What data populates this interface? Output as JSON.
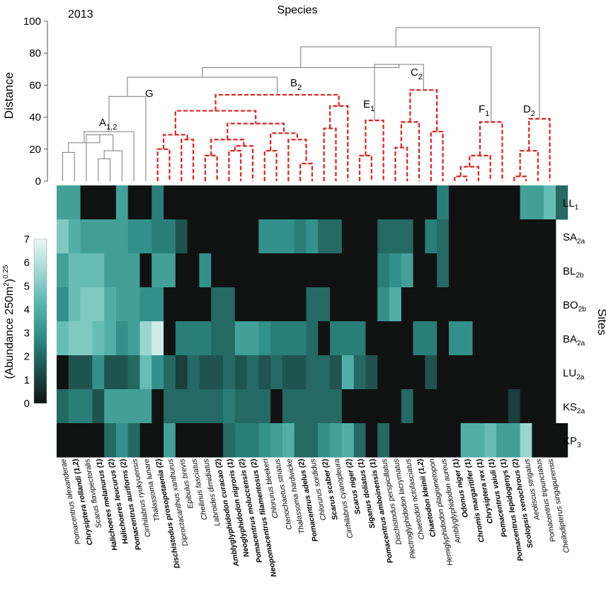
{
  "chart_data": {
    "type": "heatmap",
    "year_label": "2013",
    "x_title": "Species",
    "dendrogram_axis": {
      "label": "Distance",
      "ticks": [
        0,
        20,
        40,
        60,
        80,
        100
      ],
      "range": [
        0,
        100
      ]
    },
    "colorbar": {
      "label_main": "(Abundance 250m",
      "label_sup1": "2",
      "label_close": ")",
      "label_sup2": "0.25",
      "ticks": [
        0,
        1,
        2,
        3,
        4,
        5,
        6,
        7
      ],
      "range": [
        0,
        7
      ],
      "colors": [
        "#101212",
        "#1e4f4b",
        "#2c8b84",
        "#57b5ad",
        "#9fd8d2",
        "#e8f6f5"
      ]
    },
    "sites_title": "Sites",
    "sites": [
      {
        "main": "LL",
        "sub": "1"
      },
      {
        "main": "SA",
        "sub": "2a"
      },
      {
        "main": "BL",
        "sub": "2b"
      },
      {
        "main": "BO",
        "sub": "2b"
      },
      {
        "main": "BA",
        "sub": "2a"
      },
      {
        "main": "LU",
        "sub": "2a"
      },
      {
        "main": "KS",
        "sub": "2a"
      },
      {
        "main": "KP",
        "sub": "3"
      }
    ],
    "species": [
      {
        "name": "Pomacentrus alexanderae",
        "bold": false
      },
      {
        "name": "Chrysiptera rollandi (1,2)",
        "bold": true
      },
      {
        "name": "Scarus flavipectoralis",
        "bold": false
      },
      {
        "name": "Halichoeres melanurus (1)",
        "bold": true
      },
      {
        "name": "Halichoeres leucurus (2)",
        "bold": true
      },
      {
        "name": "Pomacentrus auriforns (2)",
        "bold": true
      },
      {
        "name": "Cirrhilabrus ryukyuensis",
        "bold": false
      },
      {
        "name": "Thalassoma lunare",
        "bold": false
      },
      {
        "name": "Dischistodus prosopotaenia (2)",
        "bold": true
      },
      {
        "name": "Diproctacanthus xanthurus",
        "bold": false
      },
      {
        "name": "Epibulus brevis",
        "bold": false
      },
      {
        "name": "Cheilinus fasciatus",
        "bold": false
      },
      {
        "name": "Labroides dimidiatus",
        "bold": false
      },
      {
        "name": "Amblyglyphidodon curacao (2)",
        "bold": true
      },
      {
        "name": "Neoglyphidodon nigroris (1)",
        "bold": true
      },
      {
        "name": "Pomacentrus moluccensis (2)",
        "bold": true
      },
      {
        "name": "Neopomacentrus filamentosus (2)",
        "bold": true
      },
      {
        "name": "Chlorurus bleekeri",
        "bold": false
      },
      {
        "name": "Ctenochaetus striatus",
        "bold": false
      },
      {
        "name": "Thalassoma hardwicke",
        "bold": false
      },
      {
        "name": "Pomacentrus adelus (2)",
        "bold": true
      },
      {
        "name": "Chlorurus sordidus",
        "bold": false
      },
      {
        "name": "Scarus scaber (2)",
        "bold": true
      },
      {
        "name": "Cirrhilabrus cyanopleura",
        "bold": false
      },
      {
        "name": "Scarus niger (2)",
        "bold": true
      },
      {
        "name": "Siganus doliatus (1)",
        "bold": true
      },
      {
        "name": "Pomacentrus amboinensis (1)",
        "bold": true
      },
      {
        "name": "Dischistodus perspicillatus",
        "bold": false
      },
      {
        "name": "Plectroglyphidodon lacrymatus",
        "bold": false
      },
      {
        "name": "Chaetodon octofasciatus",
        "bold": false
      },
      {
        "name": "Chaetodon kleinii (1,2)",
        "bold": true
      },
      {
        "name": "Hemiglyphidodon plagiometopon",
        "bold": false
      },
      {
        "name": "Amblyglyphidodon aureus",
        "bold": false
      },
      {
        "name": "Odonus niger (1)",
        "bold": true
      },
      {
        "name": "Chromis margaritifer (1)",
        "bold": true
      },
      {
        "name": "Chrysiptera rex (1)",
        "bold": true
      },
      {
        "name": "Pomacentrus vaiuli (1)",
        "bold": true
      },
      {
        "name": "Pomacentrus lepidogenys (1)",
        "bold": true
      },
      {
        "name": "Scolopsis xenochrous (2)",
        "bold": true
      },
      {
        "name": "Aeoliscus strigatus",
        "bold": false
      },
      {
        "name": "Pomacentrus tripunctatus",
        "bold": false
      },
      {
        "name": "Cheilodipterus singapurensis",
        "bold": false
      }
    ],
    "values": [
      [
        3.5,
        3.5,
        0,
        0,
        0,
        3.5,
        0,
        0,
        2.5,
        0,
        0,
        0,
        0,
        0,
        0,
        0,
        0,
        0,
        0,
        0,
        0,
        0,
        0,
        0,
        0,
        0,
        0,
        0,
        0,
        0,
        0,
        0,
        2.5,
        0,
        0,
        0,
        0,
        0,
        0,
        3.5,
        3.5,
        4.5,
        2
      ],
      [
        5,
        4,
        3.5,
        3.5,
        3.5,
        3.5,
        3,
        3,
        2.5,
        2.5,
        1.5,
        0,
        0,
        0,
        0,
        0,
        0,
        3,
        3,
        3,
        2.5,
        3,
        2,
        2,
        0,
        0,
        0,
        2,
        2,
        2,
        0,
        2.5,
        2,
        0,
        0,
        0,
        0,
        0,
        0,
        0,
        0,
        0
      ],
      [
        3.5,
        4.5,
        4.5,
        4.5,
        3.5,
        3.5,
        3.5,
        0,
        3.5,
        3.5,
        0,
        0,
        3,
        0,
        0,
        0,
        0,
        0,
        0,
        0,
        0,
        0,
        0,
        0,
        0,
        0,
        0,
        2.5,
        3,
        3.5,
        0,
        0,
        2,
        0,
        0,
        0,
        0,
        0,
        0,
        0,
        0,
        0
      ],
      [
        3,
        4.5,
        5,
        5,
        4,
        3.5,
        3.5,
        3,
        3,
        0,
        0,
        0,
        0,
        2,
        2,
        0,
        0,
        0,
        0,
        0,
        0,
        2,
        2,
        0,
        0,
        0,
        0,
        3,
        4,
        0,
        0,
        0,
        0,
        0,
        0,
        0,
        0,
        0,
        0,
        0,
        0,
        0
      ],
      [
        4.5,
        5,
        5,
        4.5,
        4,
        3,
        3.5,
        5.5,
        6.5,
        0,
        2.5,
        2.5,
        2.5,
        2,
        2,
        3.5,
        3.5,
        3,
        2.5,
        2.5,
        2.5,
        2,
        0,
        2.5,
        2.5,
        2.5,
        0,
        0,
        0,
        0,
        2.5,
        2.5,
        0,
        3,
        3,
        0,
        0,
        0,
        0,
        0,
        0,
        0
      ],
      [
        0,
        1.5,
        1.5,
        3,
        1.5,
        1.5,
        2,
        4.5,
        3,
        2,
        1,
        2,
        1.5,
        1.5,
        2,
        1.5,
        2,
        1.5,
        2,
        1.5,
        1.5,
        2,
        2,
        1.5,
        4,
        2,
        1.5,
        0,
        0,
        0,
        0,
        1.5,
        0,
        0,
        0,
        0,
        0,
        0,
        0,
        0,
        0,
        0
      ],
      [
        2,
        2.5,
        2.5,
        1.5,
        3.5,
        3.5,
        3.5,
        3.5,
        0,
        2,
        2,
        2,
        2,
        2,
        2.5,
        2,
        2,
        2,
        0,
        2,
        2,
        2,
        2,
        2,
        0,
        0,
        0,
        0,
        0,
        2,
        0,
        0,
        0,
        0,
        0,
        0,
        0,
        0,
        1,
        0,
        0,
        0
      ],
      [
        0,
        0,
        0,
        0,
        2,
        3,
        2,
        0,
        0,
        3.5,
        0,
        0,
        0,
        0,
        2,
        2.5,
        2.5,
        3,
        3.5,
        4,
        2,
        2,
        3,
        3.5,
        4,
        2,
        0,
        2,
        0,
        0,
        0,
        0,
        0,
        0,
        4,
        4,
        4.5,
        3.5,
        3.5,
        5.5,
        0,
        0,
        0
      ]
    ],
    "clusters": [
      {
        "main": "A",
        "sub": "1,2"
      },
      {
        "main": "G",
        "sub": ""
      },
      {
        "main": "B",
        "sub": "2"
      },
      {
        "main": "E",
        "sub": "1"
      },
      {
        "main": "C",
        "sub": "2"
      },
      {
        "main": "F",
        "sub": "1"
      },
      {
        "main": "D",
        "sub": "2"
      }
    ]
  }
}
